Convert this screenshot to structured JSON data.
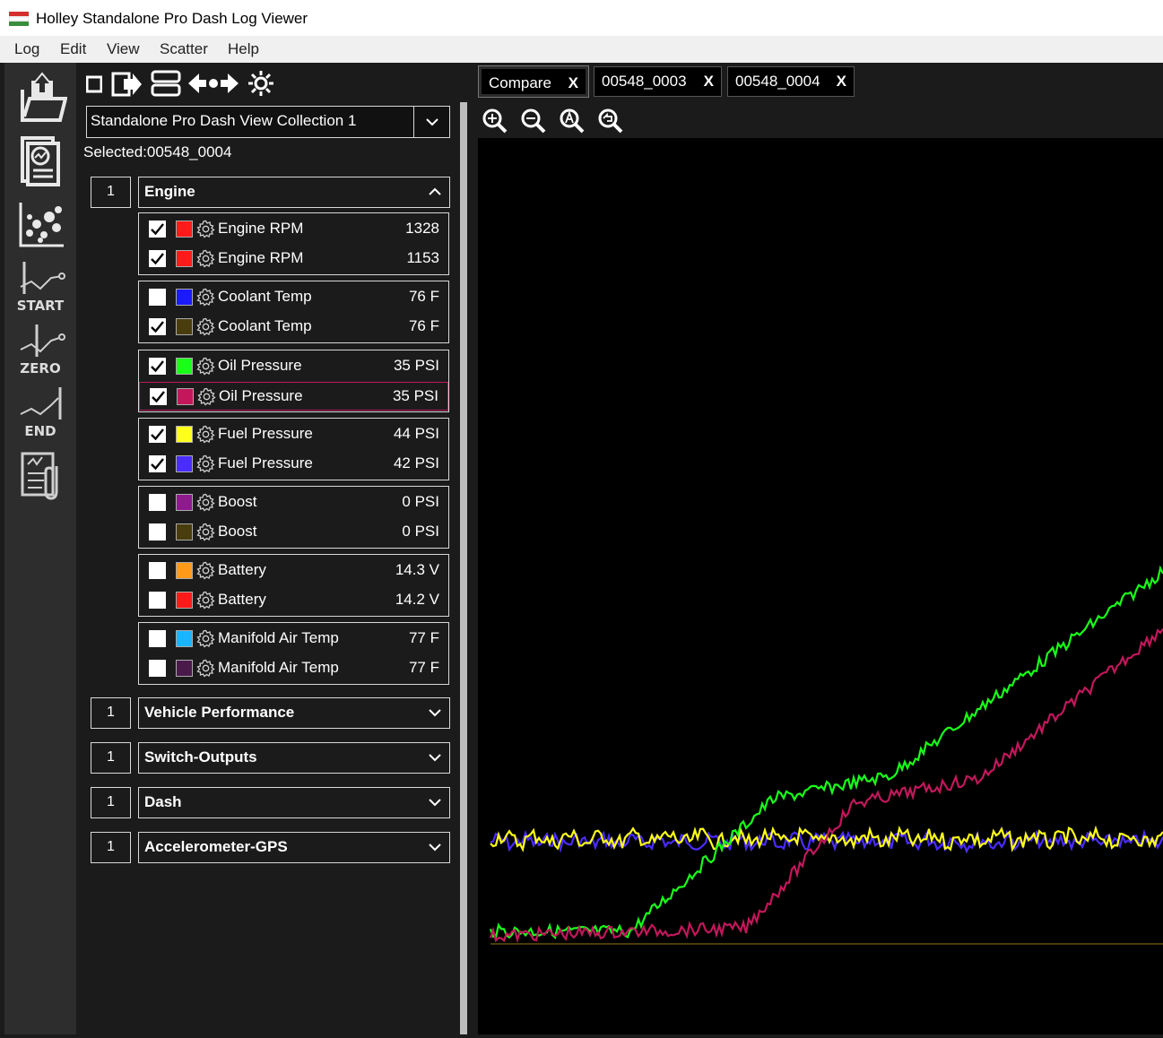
{
  "window": {
    "title": "Holley Standalone Pro Dash Log Viewer"
  },
  "menu": {
    "items": [
      "Log",
      "Edit",
      "View",
      "Scatter",
      "Help"
    ]
  },
  "leftbar": {
    "start_label": "START",
    "zero_label": "ZERO",
    "end_label": "END"
  },
  "panel": {
    "collection": "Standalone Pro Dash View Collection 1",
    "selected": "Selected:00548_0004"
  },
  "groups": [
    {
      "number": "1",
      "name": "Engine",
      "expanded": true,
      "pairs": [
        [
          {
            "checked": true,
            "color": "#ff1a1a",
            "name": "Engine RPM",
            "value": "1328"
          },
          {
            "checked": true,
            "color": "#ff1a1a",
            "name": "Engine RPM",
            "value": "1153"
          }
        ],
        [
          {
            "checked": false,
            "color": "#1a1aff",
            "name": "Coolant Temp",
            "value": "76 F"
          },
          {
            "checked": true,
            "color": "#4a3d0d",
            "name": "Coolant Temp",
            "value": "76 F"
          }
        ],
        [
          {
            "checked": true,
            "color": "#1aff1a",
            "name": "Oil Pressure",
            "value": "35 PSI"
          },
          {
            "checked": true,
            "color": "#c2185b",
            "name": "Oil Pressure",
            "value": "35 PSI"
          }
        ],
        [
          {
            "checked": true,
            "color": "#ffff1a",
            "name": "Fuel Pressure",
            "value": "44 PSI"
          },
          {
            "checked": true,
            "color": "#4a2cff",
            "name": "Fuel Pressure",
            "value": "42 PSI"
          }
        ],
        [
          {
            "checked": false,
            "color": "#8e1a8e",
            "name": "Boost",
            "value": "0 PSI"
          },
          {
            "checked": false,
            "color": "#4a3d0d",
            "name": "Boost",
            "value": "0 PSI"
          }
        ],
        [
          {
            "checked": false,
            "color": "#ff9a1a",
            "name": "Battery",
            "value": "14.3 V"
          },
          {
            "checked": false,
            "color": "#ff1a1a",
            "name": "Battery",
            "value": "14.2 V"
          }
        ],
        [
          {
            "checked": false,
            "color": "#1ab4ff",
            "name": "Manifold Air Temp",
            "value": "77 F"
          },
          {
            "checked": false,
            "color": "#4a1a4a",
            "name": "Manifold Air Temp",
            "value": "77 F"
          }
        ]
      ]
    },
    {
      "number": "1",
      "name": "Vehicle Performance",
      "expanded": false
    },
    {
      "number": "1",
      "name": "Switch-Outputs",
      "expanded": false
    },
    {
      "number": "1",
      "name": "Dash",
      "expanded": false
    },
    {
      "number": "1",
      "name": "Accelerometer-GPS",
      "expanded": false
    }
  ],
  "tabs": [
    {
      "label": "Compare",
      "close": "X",
      "active": true
    },
    {
      "label": "00548_0003",
      "close": "X",
      "active": false
    },
    {
      "label": "00548_0004",
      "close": "X",
      "active": false
    }
  ],
  "colors": {
    "oil_pressure_1": "#1aff1a",
    "oil_pressure_2": "#c2185b",
    "fuel_pressure_1": "#ffff1a",
    "fuel_pressure_2": "#4a2cff",
    "coolant_temp_2": "#4a3d0d"
  }
}
